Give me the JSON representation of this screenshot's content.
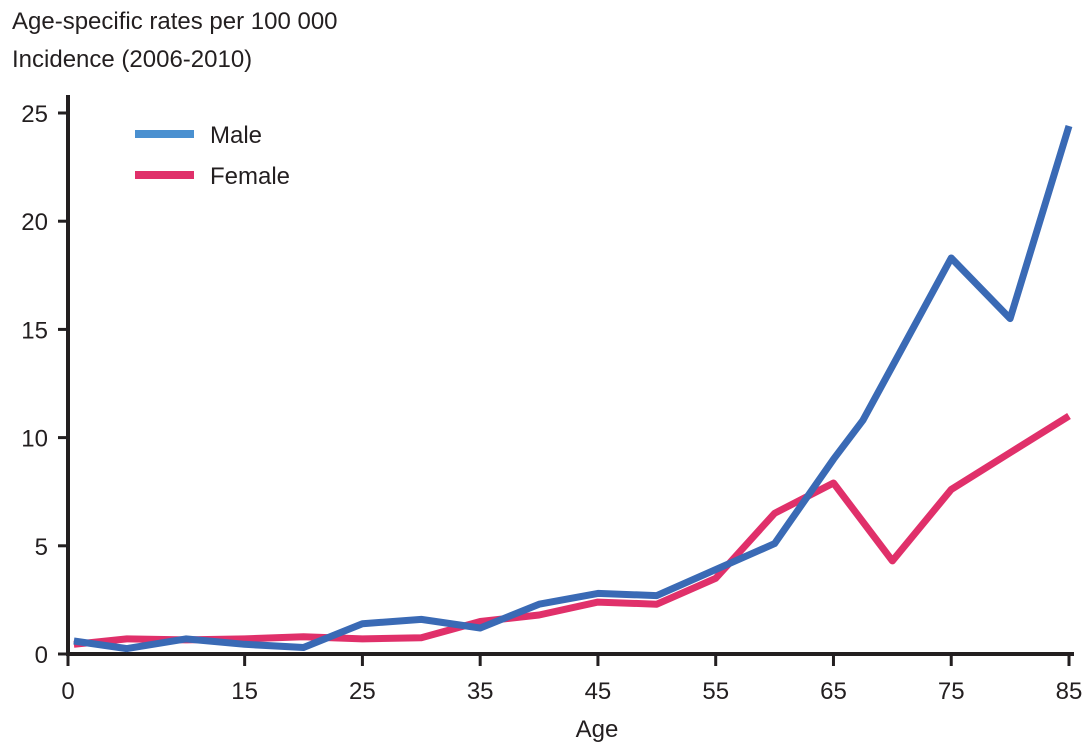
{
  "chart_data": {
    "type": "line",
    "ylabel_lines": [
      "Age-specific rates per 100 000",
      "Incidence (2006-2010)"
    ],
    "xlabel": "Age",
    "xlim": [
      0,
      85
    ],
    "ylim": [
      0,
      25
    ],
    "xticks": [
      0,
      15,
      25,
      35,
      45,
      55,
      65,
      75,
      85
    ],
    "yticks": [
      0,
      5,
      10,
      15,
      20,
      25
    ],
    "grid": false,
    "legend_position": "top-left",
    "series": [
      {
        "name": "Male",
        "color": "#3a6ab5",
        "legend_color": "#4a90d0",
        "x": [
          0.5,
          5,
          10,
          15,
          20,
          25,
          30,
          35,
          40,
          45,
          50,
          55,
          60,
          65,
          67.5,
          70,
          75,
          80,
          85
        ],
        "y": [
          0.6,
          0.25,
          0.7,
          0.45,
          0.3,
          1.4,
          1.6,
          1.2,
          2.3,
          2.8,
          2.7,
          3.9,
          5.1,
          9.0,
          10.8,
          13.3,
          18.3,
          15.5,
          24.4
        ]
      },
      {
        "name": "Female",
        "color": "#e0306a",
        "legend_color": "#e0306a",
        "x": [
          0.5,
          5,
          10,
          15,
          20,
          25,
          30,
          35,
          40,
          45,
          50,
          55,
          60,
          65,
          70,
          75,
          80,
          85
        ],
        "y": [
          0.45,
          0.7,
          0.65,
          0.7,
          0.8,
          0.7,
          0.75,
          1.5,
          1.8,
          2.4,
          2.3,
          3.5,
          6.5,
          7.9,
          4.3,
          7.6,
          9.3,
          11.0
        ]
      }
    ]
  }
}
